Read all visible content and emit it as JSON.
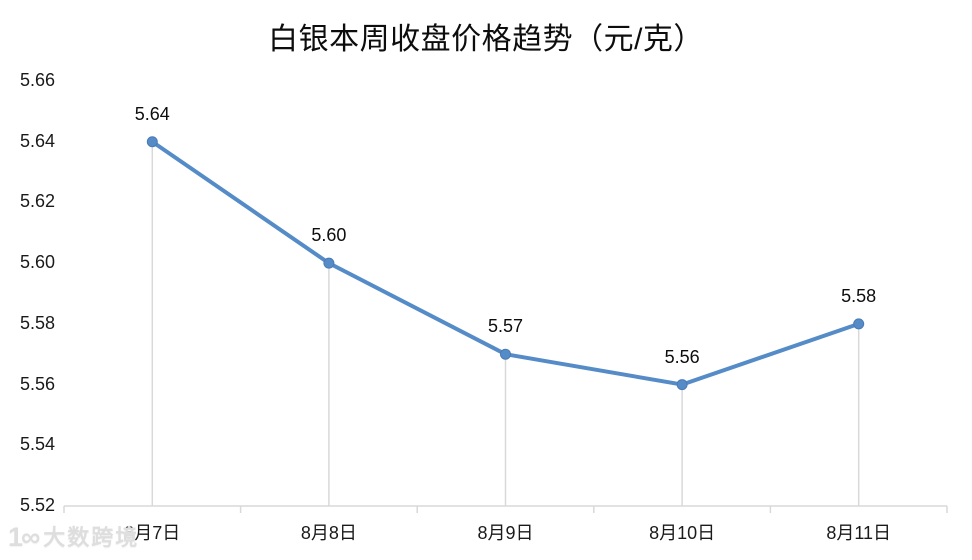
{
  "title": "白银本周收盘价格趋势（元/克）",
  "watermark": {
    "logo": "1∞",
    "text": "大数跨境"
  },
  "colors": {
    "line": "#558cc8",
    "marker": "#558cc8",
    "marker_border": "#4a7ab5",
    "axis": "#d9d9d9",
    "drop_line": "#d9d9d9",
    "text": "#1a1a1a"
  },
  "chart_data": {
    "type": "line",
    "title": "白银本周收盘价格趋势（元/克）",
    "categories": [
      "8月7日",
      "8月8日",
      "8月9日",
      "8月10日",
      "8月11日"
    ],
    "values": [
      5.64,
      5.6,
      5.57,
      5.56,
      5.58
    ],
    "data_labels": [
      "5.64",
      "5.60",
      "5.57",
      "5.56",
      "5.58"
    ],
    "xlabel": "",
    "ylabel": "",
    "ylim": [
      5.52,
      5.66
    ],
    "yticks": [
      "5.52",
      "5.54",
      "5.56",
      "5.58",
      "5.60",
      "5.62",
      "5.64",
      "5.66"
    ],
    "grid": "off",
    "legend": "none",
    "marker": "circle",
    "drop_lines": true
  }
}
